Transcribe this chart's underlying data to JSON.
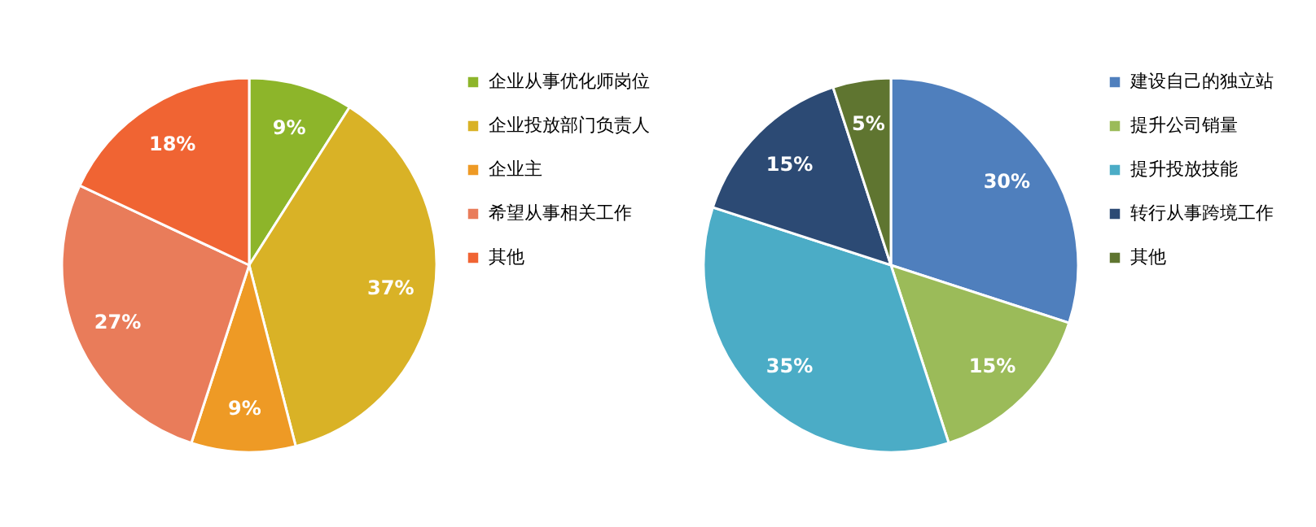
{
  "chart_data": [
    {
      "type": "pie",
      "categories": [
        "企业从事优化师岗位",
        "企业投放部门负责人",
        "企业主",
        "希望从事相关工作",
        "其他"
      ],
      "values": [
        9,
        37,
        9,
        27,
        18
      ],
      "colors": [
        "#8db52a",
        "#d9b226",
        "#ee9a25",
        "#e97c5a",
        "#f06433"
      ],
      "value_labels": [
        "9%",
        "37%",
        "9%",
        "27%",
        "18%"
      ],
      "legend": "right"
    },
    {
      "type": "pie",
      "categories": [
        "建设自己的独立站",
        "提升公司销量",
        "提升投放技能",
        "转行从事跨境工作",
        "其他"
      ],
      "values": [
        30,
        15,
        35,
        15,
        5
      ],
      "colors": [
        "#4f7fbd",
        "#9bbb59",
        "#4bacc6",
        "#2c4a74",
        "#5f7530"
      ],
      "value_labels": [
        "30%",
        "15%",
        "35%",
        "15%",
        "5%"
      ],
      "legend": "right"
    }
  ]
}
